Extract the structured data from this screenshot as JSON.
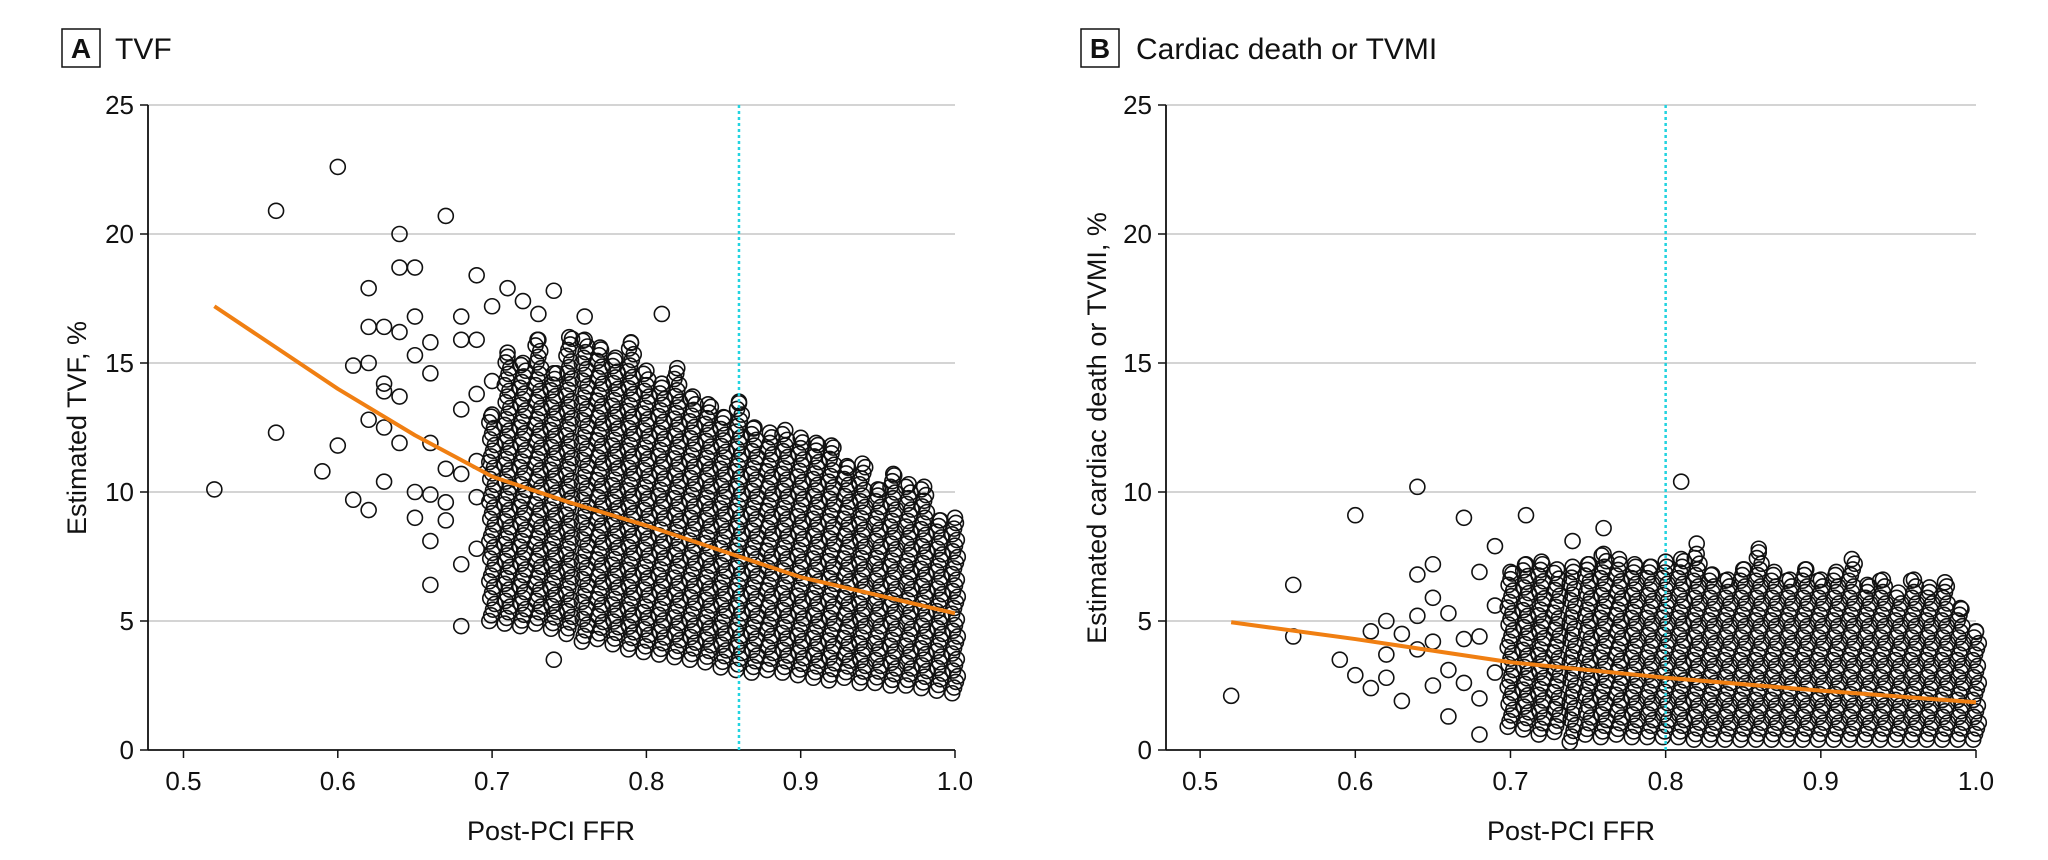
{
  "chart_data": [
    {
      "type": "scatter",
      "panel_letter": "A",
      "title": "TVF",
      "xlabel": "Post-PCI FFR",
      "ylabel": "Estimated TVF, %",
      "xlim": [
        0.477,
        1.0
      ],
      "ylim": [
        0,
        25
      ],
      "xticks": [
        "0.5",
        "0.6",
        "0.7",
        "0.8",
        "0.9",
        "1.0"
      ],
      "xtick_values": [
        0.5,
        0.6,
        0.7,
        0.8,
        0.9,
        1.0
      ],
      "yticks": [
        "0",
        "5",
        "10",
        "15",
        "20",
        "25"
      ],
      "ytick_values": [
        0,
        5,
        10,
        15,
        20,
        25
      ],
      "grid": "horizontal",
      "reference_line_x": 0.86,
      "colors": {
        "points": "#111111",
        "trend": "#f07f12",
        "reference": "#22d3e0",
        "grid": "#d4d4d4"
      },
      "points": [
        [
          0.52,
          10.1
        ],
        [
          0.56,
          20.9
        ],
        [
          0.56,
          12.3
        ],
        [
          0.59,
          10.8
        ],
        [
          0.6,
          22.6
        ],
        [
          0.6,
          11.8
        ],
        [
          0.61,
          14.9
        ],
        [
          0.61,
          9.7
        ],
        [
          0.62,
          17.9
        ],
        [
          0.62,
          16.4
        ],
        [
          0.62,
          15.0
        ],
        [
          0.62,
          12.8
        ],
        [
          0.62,
          9.3
        ],
        [
          0.63,
          16.4
        ],
        [
          0.63,
          14.2
        ],
        [
          0.63,
          13.9
        ],
        [
          0.63,
          12.5
        ],
        [
          0.63,
          10.4
        ],
        [
          0.64,
          20.0
        ],
        [
          0.64,
          18.7
        ],
        [
          0.64,
          16.2
        ],
        [
          0.64,
          13.7
        ],
        [
          0.64,
          11.9
        ],
        [
          0.65,
          18.7
        ],
        [
          0.65,
          16.8
        ],
        [
          0.65,
          15.3
        ],
        [
          0.65,
          10.0
        ],
        [
          0.65,
          9.0
        ],
        [
          0.66,
          15.8
        ],
        [
          0.66,
          14.6
        ],
        [
          0.66,
          11.9
        ],
        [
          0.66,
          9.9
        ],
        [
          0.66,
          8.1
        ],
        [
          0.66,
          6.4
        ],
        [
          0.67,
          20.7
        ],
        [
          0.67,
          10.9
        ],
        [
          0.67,
          9.6
        ],
        [
          0.67,
          8.9
        ],
        [
          0.68,
          16.8
        ],
        [
          0.68,
          15.9
        ],
        [
          0.68,
          13.2
        ],
        [
          0.68,
          10.7
        ],
        [
          0.68,
          7.2
        ],
        [
          0.68,
          4.8
        ],
        [
          0.69,
          18.4
        ],
        [
          0.69,
          15.9
        ],
        [
          0.69,
          13.8
        ],
        [
          0.69,
          11.2
        ],
        [
          0.69,
          9.8
        ],
        [
          0.69,
          7.8
        ],
        [
          0.7,
          17.2
        ],
        [
          0.7,
          14.3
        ],
        [
          0.71,
          17.9
        ],
        [
          0.72,
          17.4
        ],
        [
          0.73,
          16.9
        ],
        [
          0.74,
          17.8
        ],
        [
          0.74,
          3.5
        ],
        [
          0.76,
          16.8
        ],
        [
          0.81,
          16.9
        ]
      ],
      "columns": [
        [
          0.7,
          5.0,
          13.0
        ],
        [
          0.71,
          4.9,
          15.4
        ],
        [
          0.72,
          4.8,
          15.0
        ],
        [
          0.73,
          4.9,
          15.9
        ],
        [
          0.74,
          4.7,
          14.6
        ],
        [
          0.75,
          4.5,
          16.0
        ],
        [
          0.76,
          4.2,
          15.9
        ],
        [
          0.77,
          4.3,
          15.6
        ],
        [
          0.78,
          4.1,
          15.2
        ],
        [
          0.79,
          3.9,
          15.8
        ],
        [
          0.8,
          3.8,
          14.7
        ],
        [
          0.81,
          3.7,
          14.2
        ],
        [
          0.82,
          3.6,
          14.8
        ],
        [
          0.83,
          3.5,
          13.7
        ],
        [
          0.84,
          3.4,
          13.4
        ],
        [
          0.85,
          3.2,
          12.9
        ],
        [
          0.86,
          3.1,
          13.5
        ],
        [
          0.87,
          3.0,
          12.5
        ],
        [
          0.88,
          3.1,
          12.3
        ],
        [
          0.89,
          3.0,
          12.4
        ],
        [
          0.9,
          2.9,
          12.1
        ],
        [
          0.91,
          2.8,
          11.9
        ],
        [
          0.92,
          2.7,
          11.8
        ],
        [
          0.93,
          2.8,
          11.0
        ],
        [
          0.94,
          2.6,
          11.1
        ],
        [
          0.95,
          2.6,
          10.1
        ],
        [
          0.96,
          2.5,
          10.7
        ],
        [
          0.97,
          2.5,
          10.3
        ],
        [
          0.98,
          2.4,
          10.2
        ],
        [
          0.99,
          2.3,
          8.9
        ],
        [
          1.0,
          2.2,
          9.0
        ]
      ],
      "trend": [
        [
          0.52,
          17.2
        ],
        [
          0.56,
          15.6
        ],
        [
          0.6,
          14.0
        ],
        [
          0.65,
          12.2
        ],
        [
          0.7,
          10.6
        ],
        [
          0.75,
          9.6
        ],
        [
          0.8,
          8.7
        ],
        [
          0.85,
          7.7
        ],
        [
          0.9,
          6.7
        ],
        [
          0.95,
          6.0
        ],
        [
          1.0,
          5.3
        ]
      ]
    },
    {
      "type": "scatter",
      "panel_letter": "B",
      "title": "Cardiac death or TVMI",
      "xlabel": "Post-PCI FFR",
      "ylabel": "Estimated cardiac death or TVMI, %",
      "xlim": [
        0.478,
        1.0
      ],
      "ylim": [
        0,
        25
      ],
      "xticks": [
        "0.5",
        "0.6",
        "0.7",
        "0.8",
        "0.9",
        "1.0"
      ],
      "xtick_values": [
        0.5,
        0.6,
        0.7,
        0.8,
        0.9,
        1.0
      ],
      "yticks": [
        "0",
        "5",
        "10",
        "15",
        "20",
        "25"
      ],
      "ytick_values": [
        0,
        5,
        10,
        15,
        20,
        25
      ],
      "grid": "horizontal",
      "reference_line_x": 0.8,
      "colors": {
        "points": "#111111",
        "trend": "#f07f12",
        "reference": "#22d3e0",
        "grid": "#d4d4d4"
      },
      "points": [
        [
          0.52,
          2.1
        ],
        [
          0.56,
          6.4
        ],
        [
          0.56,
          4.4
        ],
        [
          0.59,
          3.5
        ],
        [
          0.6,
          9.1
        ],
        [
          0.6,
          2.9
        ],
        [
          0.61,
          4.6
        ],
        [
          0.61,
          2.4
        ],
        [
          0.62,
          5.0
        ],
        [
          0.62,
          3.7
        ],
        [
          0.62,
          2.8
        ],
        [
          0.63,
          4.5
        ],
        [
          0.63,
          1.9
        ],
        [
          0.64,
          10.2
        ],
        [
          0.64,
          6.8
        ],
        [
          0.64,
          5.2
        ],
        [
          0.64,
          3.9
        ],
        [
          0.65,
          7.2
        ],
        [
          0.65,
          5.9
        ],
        [
          0.65,
          4.2
        ],
        [
          0.65,
          2.5
        ],
        [
          0.66,
          5.3
        ],
        [
          0.66,
          3.1
        ],
        [
          0.66,
          1.3
        ],
        [
          0.67,
          9.0
        ],
        [
          0.67,
          4.3
        ],
        [
          0.67,
          2.6
        ],
        [
          0.68,
          6.9
        ],
        [
          0.68,
          4.4
        ],
        [
          0.68,
          2.0
        ],
        [
          0.68,
          0.6
        ],
        [
          0.69,
          7.9
        ],
        [
          0.69,
          5.6
        ],
        [
          0.69,
          3.0
        ],
        [
          0.71,
          9.1
        ],
        [
          0.74,
          8.1
        ],
        [
          0.76,
          8.6
        ],
        [
          0.81,
          10.4
        ],
        [
          0.82,
          8.0
        ]
      ],
      "columns": [
        [
          0.7,
          0.9,
          6.9
        ],
        [
          0.71,
          0.8,
          7.2
        ],
        [
          0.72,
          0.6,
          7.3
        ],
        [
          0.73,
          0.7,
          7.0
        ],
        [
          0.74,
          0.3,
          7.1
        ],
        [
          0.75,
          0.6,
          7.2
        ],
        [
          0.76,
          0.5,
          7.6
        ],
        [
          0.77,
          0.6,
          7.4
        ],
        [
          0.78,
          0.5,
          7.2
        ],
        [
          0.79,
          0.5,
          7.1
        ],
        [
          0.8,
          0.5,
          7.3
        ],
        [
          0.81,
          0.5,
          7.4
        ],
        [
          0.82,
          0.4,
          7.6
        ],
        [
          0.83,
          0.4,
          6.8
        ],
        [
          0.84,
          0.4,
          6.6
        ],
        [
          0.85,
          0.4,
          7.0
        ],
        [
          0.86,
          0.4,
          7.8
        ],
        [
          0.87,
          0.4,
          6.9
        ],
        [
          0.88,
          0.4,
          6.6
        ],
        [
          0.89,
          0.4,
          7.0
        ],
        [
          0.9,
          0.4,
          6.6
        ],
        [
          0.91,
          0.4,
          6.9
        ],
        [
          0.92,
          0.4,
          7.4
        ],
        [
          0.93,
          0.4,
          6.4
        ],
        [
          0.94,
          0.4,
          6.6
        ],
        [
          0.95,
          0.4,
          6.1
        ],
        [
          0.96,
          0.4,
          6.6
        ],
        [
          0.97,
          0.4,
          6.3
        ],
        [
          0.98,
          0.4,
          6.5
        ],
        [
          0.99,
          0.4,
          5.5
        ],
        [
          1.0,
          0.4,
          4.6
        ]
      ],
      "trend": [
        [
          0.52,
          4.95
        ],
        [
          0.6,
          4.3
        ],
        [
          0.7,
          3.4
        ],
        [
          0.8,
          2.8
        ],
        [
          0.9,
          2.3
        ],
        [
          1.0,
          1.85
        ]
      ]
    }
  ]
}
